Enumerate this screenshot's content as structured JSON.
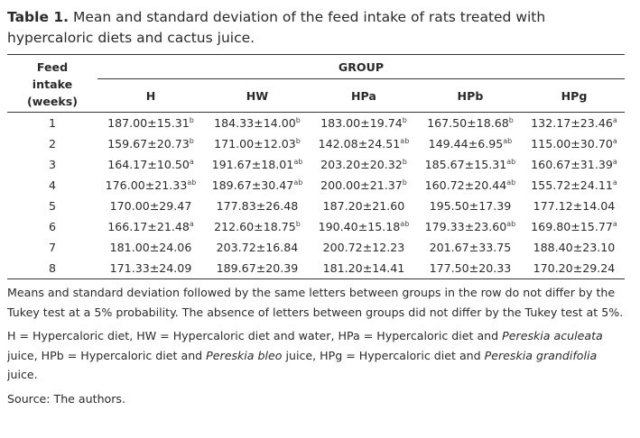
{
  "title": {
    "label": "Table 1.",
    "text": "Mean and standard deviation of the feed intake of rats treated with hypercaloric diets and cactus juice."
  },
  "table": {
    "row_header": [
      "Feed",
      "intake",
      "(weeks)"
    ],
    "group_label": "GROUP",
    "columns": [
      "H",
      "HW",
      "HPa",
      "HPb",
      "HPg"
    ],
    "rows": [
      {
        "week": "1",
        "cells": [
          [
            "187.00±15.31",
            "b"
          ],
          [
            "184.33±14.00",
            "b"
          ],
          [
            "183.00±19.74",
            "b"
          ],
          [
            "167.50±18.68",
            "b"
          ],
          [
            "132.17±23.46",
            "a"
          ]
        ]
      },
      {
        "week": "2",
        "cells": [
          [
            "159.67±20.73",
            "b"
          ],
          [
            "171.00±12.03",
            "b"
          ],
          [
            "142.08±24.51",
            "ab"
          ],
          [
            "149.44±6.95",
            "ab"
          ],
          [
            "115.00±30.70",
            "a"
          ]
        ]
      },
      {
        "week": "3",
        "cells": [
          [
            "164.17±10.50",
            "a"
          ],
          [
            "191.67±18.01",
            "ab"
          ],
          [
            "203.20±20.32",
            "b"
          ],
          [
            "185.67±15.31",
            "ab"
          ],
          [
            "160.67±31.39",
            "a"
          ]
        ]
      },
      {
        "week": "4",
        "cells": [
          [
            "176.00±21.33",
            "ab"
          ],
          [
            "189.67±30.47",
            "ab"
          ],
          [
            "200.00±21.37",
            "b"
          ],
          [
            "160.72±20.44",
            "ab"
          ],
          [
            "155.72±24.11",
            "a"
          ]
        ]
      },
      {
        "week": "5",
        "cells": [
          [
            "170.00±29.47",
            ""
          ],
          [
            "177.83±26.48",
            ""
          ],
          [
            "187.20±21.60",
            ""
          ],
          [
            "195.50±17.39",
            ""
          ],
          [
            "177.12±14.04",
            ""
          ]
        ]
      },
      {
        "week": "6",
        "cells": [
          [
            "166.17±21.48",
            "a"
          ],
          [
            "212.60±18.75",
            "b"
          ],
          [
            "190.40±15.18",
            "ab"
          ],
          [
            "179.33±23.60",
            "ab"
          ],
          [
            "169.80±15.77",
            "a"
          ]
        ]
      },
      {
        "week": "7",
        "cells": [
          [
            "181.00±24.06",
            ""
          ],
          [
            "203.72±16.84",
            ""
          ],
          [
            "200.72±12.23",
            ""
          ],
          [
            "201.67±33.75",
            ""
          ],
          [
            "188.40±23.10",
            ""
          ]
        ]
      },
      {
        "week": "8",
        "cells": [
          [
            "171.33±24.09",
            ""
          ],
          [
            "189.67±20.39",
            ""
          ],
          [
            "181.20±14.41",
            ""
          ],
          [
            "177.50±20.33",
            ""
          ],
          [
            "170.20±29.24",
            ""
          ]
        ]
      }
    ]
  },
  "notes": {
    "stats": "Means and standard deviation followed by the same letters between groups in the row do not differ by the Tukey test at a 5% probability. The absence of letters between groups did not differ by the Tukey test at 5%.",
    "abbrev": [
      {
        "t": "H = Hypercaloric diet, HW = Hypercaloric diet and water, HPa = Hypercaloric diet and ",
        "i": false
      },
      {
        "t": "Pereskia aculeata",
        "i": true
      },
      {
        "t": " juice, HPb = Hypercaloric diet and ",
        "i": false
      },
      {
        "t": "Pereskia bleo",
        "i": true
      },
      {
        "t": " juice, HPg = Hypercaloric diet and ",
        "i": false
      },
      {
        "t": "Pereskia grandifolia",
        "i": true
      },
      {
        "t": " juice.",
        "i": false
      }
    ],
    "source": "Source: The authors."
  }
}
